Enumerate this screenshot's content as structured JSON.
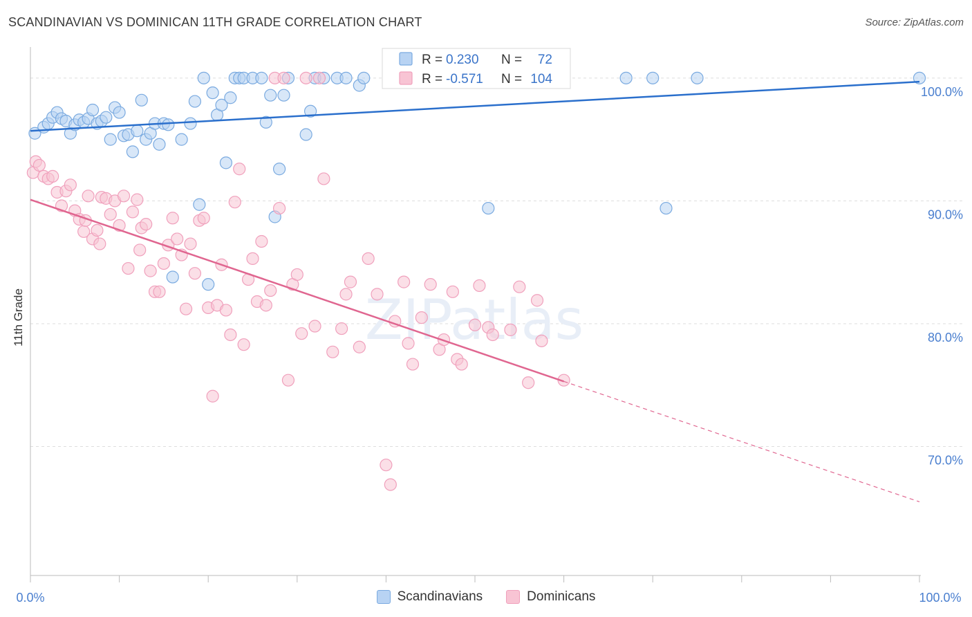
{
  "header": {
    "title": "SCANDINAVIAN VS DOMINICAN 11TH GRADE CORRELATION CHART",
    "source": "Source: ZipAtlas.com"
  },
  "chart_data": {
    "type": "scatter",
    "title": "SCANDINAVIAN VS DOMINICAN 11TH GRADE CORRELATION CHART",
    "ylabel": "11th Grade",
    "xlabel": "",
    "xlim": [
      0,
      100
    ],
    "ylim": [
      59.5,
      102.3
    ],
    "x_tick_labels": [
      "0.0%",
      "100.0%"
    ],
    "y_ticks": [
      {
        "value": 100,
        "label": "100.0%"
      },
      {
        "value": 90,
        "label": "90.0%"
      },
      {
        "value": 80,
        "label": "80.0%"
      },
      {
        "value": 70,
        "label": "70.0%"
      }
    ],
    "grid": true,
    "legend_position": "bottom",
    "watermark": "ZIPatlas",
    "stats": [
      {
        "r_label": "R =",
        "r": "0.230",
        "n_label": "N =",
        "n": "72"
      },
      {
        "r_label": "R =",
        "r": "-0.571",
        "n_label": "N =",
        "n": "104"
      }
    ],
    "series": [
      {
        "name": "Scandinavians",
        "color": "#7aaae0",
        "fill": "#b8d3f3",
        "line_color": "#2a6fcc",
        "trend": {
          "x": [
            0,
            100
          ],
          "y": [
            95.7,
            99.7
          ]
        },
        "points": [
          [
            0.5,
            95.5
          ],
          [
            1.5,
            96.0
          ],
          [
            2.0,
            96.3
          ],
          [
            2.5,
            96.8
          ],
          [
            3.0,
            97.2
          ],
          [
            3.5,
            96.7
          ],
          [
            4.0,
            96.5
          ],
          [
            4.5,
            95.5
          ],
          [
            5.0,
            96.2
          ],
          [
            5.5,
            96.6
          ],
          [
            6.0,
            96.4
          ],
          [
            6.5,
            96.7
          ],
          [
            7.0,
            97.4
          ],
          [
            7.5,
            96.3
          ],
          [
            8.0,
            96.5
          ],
          [
            8.5,
            96.8
          ],
          [
            9.0,
            95.0
          ],
          [
            9.5,
            97.6
          ],
          [
            10.0,
            97.2
          ],
          [
            10.5,
            95.3
          ],
          [
            11.0,
            95.4
          ],
          [
            11.5,
            94.0
          ],
          [
            12.0,
            95.7
          ],
          [
            12.5,
            98.2
          ],
          [
            13.0,
            95.0
          ],
          [
            13.5,
            95.5
          ],
          [
            14.0,
            96.3
          ],
          [
            14.5,
            94.6
          ],
          [
            15.0,
            96.3
          ],
          [
            15.5,
            96.2
          ],
          [
            16.0,
            83.8
          ],
          [
            17.0,
            95.0
          ],
          [
            18.0,
            96.3
          ],
          [
            18.5,
            98.1
          ],
          [
            19.0,
            89.7
          ],
          [
            19.5,
            100.0
          ],
          [
            20.0,
            83.2
          ],
          [
            20.5,
            98.8
          ],
          [
            21.0,
            97.0
          ],
          [
            21.5,
            97.8
          ],
          [
            22.0,
            93.1
          ],
          [
            22.5,
            98.4
          ],
          [
            23.0,
            100.0
          ],
          [
            23.5,
            100.0
          ],
          [
            24.0,
            100.0
          ],
          [
            25.0,
            100.0
          ],
          [
            26.0,
            100.0
          ],
          [
            26.5,
            96.4
          ],
          [
            27.0,
            98.6
          ],
          [
            27.5,
            88.7
          ],
          [
            28.0,
            92.6
          ],
          [
            28.5,
            98.6
          ],
          [
            29.0,
            100.0
          ],
          [
            31.0,
            95.4
          ],
          [
            31.5,
            97.3
          ],
          [
            32.0,
            100.0
          ],
          [
            33.0,
            100.0
          ],
          [
            34.5,
            100.0
          ],
          [
            35.5,
            100.0
          ],
          [
            37.0,
            99.4
          ],
          [
            37.5,
            100.0
          ],
          [
            40.5,
            100.0
          ],
          [
            43.5,
            100.0
          ],
          [
            45.5,
            100.0
          ],
          [
            47.0,
            100.0
          ],
          [
            48.0,
            100.0
          ],
          [
            50.0,
            100.0
          ],
          [
            51.5,
            89.4
          ],
          [
            67.0,
            100.0
          ],
          [
            70.0,
            100.0
          ],
          [
            71.5,
            89.4
          ],
          [
            75.0,
            100.0
          ],
          [
            100.0,
            100.0
          ]
        ]
      },
      {
        "name": "Dominicans",
        "color": "#f0a0bc",
        "fill": "#f8c4d4",
        "line_color": "#e06690",
        "trend": {
          "x": [
            0,
            60
          ],
          "y": [
            90.1,
            75.3
          ]
        },
        "trend_dashed": {
          "x": [
            60,
            100
          ],
          "y": [
            75.3,
            65.5
          ]
        },
        "points": [
          [
            0.3,
            92.3
          ],
          [
            0.6,
            93.2
          ],
          [
            1.0,
            92.9
          ],
          [
            1.5,
            92.0
          ],
          [
            2.0,
            91.8
          ],
          [
            2.5,
            92.0
          ],
          [
            3.0,
            90.7
          ],
          [
            3.5,
            89.6
          ],
          [
            4.0,
            90.8
          ],
          [
            4.5,
            91.3
          ],
          [
            5.0,
            89.2
          ],
          [
            5.5,
            88.5
          ],
          [
            6.0,
            87.5
          ],
          [
            6.2,
            88.4
          ],
          [
            6.5,
            90.4
          ],
          [
            7.0,
            86.9
          ],
          [
            7.5,
            87.6
          ],
          [
            7.8,
            86.5
          ],
          [
            8.0,
            90.3
          ],
          [
            8.5,
            90.2
          ],
          [
            9.0,
            88.9
          ],
          [
            9.5,
            90.0
          ],
          [
            10.0,
            88.0
          ],
          [
            10.5,
            90.4
          ],
          [
            11.0,
            84.5
          ],
          [
            11.5,
            89.1
          ],
          [
            12.0,
            90.1
          ],
          [
            12.3,
            86.0
          ],
          [
            12.5,
            87.8
          ],
          [
            13.0,
            88.1
          ],
          [
            13.5,
            84.3
          ],
          [
            14.0,
            82.6
          ],
          [
            14.5,
            82.6
          ],
          [
            15.0,
            84.9
          ],
          [
            15.5,
            86.4
          ],
          [
            16.0,
            88.6
          ],
          [
            16.5,
            86.9
          ],
          [
            17.0,
            85.6
          ],
          [
            17.5,
            81.2
          ],
          [
            18.0,
            86.5
          ],
          [
            18.5,
            84.1
          ],
          [
            19.0,
            88.4
          ],
          [
            19.5,
            88.6
          ],
          [
            20.0,
            81.3
          ],
          [
            20.5,
            74.1
          ],
          [
            21.0,
            81.5
          ],
          [
            21.5,
            84.8
          ],
          [
            22.0,
            81.1
          ],
          [
            22.5,
            79.1
          ],
          [
            23.0,
            89.9
          ],
          [
            23.5,
            92.6
          ],
          [
            24.0,
            78.3
          ],
          [
            24.5,
            83.6
          ],
          [
            25.0,
            85.3
          ],
          [
            25.5,
            81.8
          ],
          [
            26.0,
            86.7
          ],
          [
            26.5,
            81.5
          ],
          [
            27.0,
            82.7
          ],
          [
            27.5,
            100.0
          ],
          [
            28.0,
            89.4
          ],
          [
            28.5,
            100.0
          ],
          [
            29.0,
            75.4
          ],
          [
            29.5,
            83.2
          ],
          [
            30.0,
            84.0
          ],
          [
            30.5,
            79.2
          ],
          [
            31.0,
            100.0
          ],
          [
            32.0,
            79.8
          ],
          [
            32.5,
            100.0
          ],
          [
            33.0,
            91.8
          ],
          [
            34.0,
            77.7
          ],
          [
            35.0,
            79.6
          ],
          [
            35.5,
            82.4
          ],
          [
            36.0,
            83.4
          ],
          [
            37.0,
            78.1
          ],
          [
            38.0,
            85.3
          ],
          [
            39.0,
            82.4
          ],
          [
            40.0,
            68.5
          ],
          [
            40.5,
            66.9
          ],
          [
            41.0,
            80.2
          ],
          [
            42.0,
            83.4
          ],
          [
            42.5,
            78.4
          ],
          [
            43.0,
            76.7
          ],
          [
            44.0,
            80.5
          ],
          [
            45.0,
            83.2
          ],
          [
            46.0,
            77.9
          ],
          [
            46.5,
            78.7
          ],
          [
            47.5,
            82.6
          ],
          [
            48.0,
            77.1
          ],
          [
            48.5,
            76.7
          ],
          [
            50.0,
            79.9
          ],
          [
            50.5,
            83.1
          ],
          [
            51.5,
            79.7
          ],
          [
            52.0,
            79.1
          ],
          [
            54.0,
            79.5
          ],
          [
            55.0,
            83.0
          ],
          [
            56.0,
            75.2
          ],
          [
            57.0,
            81.9
          ],
          [
            57.5,
            78.6
          ],
          [
            60.0,
            75.4
          ]
        ]
      }
    ]
  }
}
